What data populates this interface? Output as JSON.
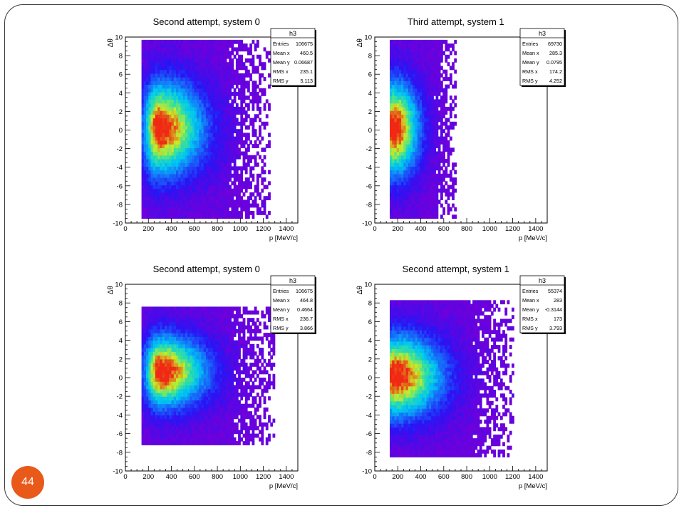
{
  "slide": {
    "page_number": "44"
  },
  "chart_data": [
    {
      "type": "heatmap",
      "title": "Second attempt, system 0",
      "xlabel": "p [MeV/c]",
      "ylabel": "Δθ",
      "xlim": [
        0,
        1500
      ],
      "ylim": [
        -10,
        10
      ],
      "xticks": [
        0,
        200,
        400,
        600,
        800,
        1000,
        1200,
        1400
      ],
      "yticks": [
        -10,
        -8,
        -6,
        -4,
        -2,
        0,
        2,
        4,
        6,
        8,
        10
      ],
      "peak": {
        "x": 280,
        "y": 0
      },
      "spread": {
        "x_range": [
          140,
          1250
        ],
        "y_range": [
          -9.5,
          9.5
        ]
      },
      "stats": {
        "name": "h3",
        "rows": [
          {
            "label": "Entries",
            "value": "106675"
          },
          {
            "label": "Mean x",
            "value": "460.5"
          },
          {
            "label": "Mean y",
            "value": "0.06687"
          },
          {
            "label": "RMS x",
            "value": "235.1"
          },
          {
            "label": "RMS y",
            "value": "5.113"
          }
        ]
      }
    },
    {
      "type": "heatmap",
      "title": "Third attempt, system 1",
      "xlabel": "p [MeV/c]",
      "ylabel": "Δθ",
      "xlim": [
        0,
        1500
      ],
      "ylim": [
        -10,
        10
      ],
      "xticks": [
        0,
        200,
        400,
        600,
        800,
        1000,
        1200,
        1400
      ],
      "yticks": [
        -10,
        -8,
        -6,
        -4,
        -2,
        0,
        2,
        4,
        6,
        8,
        10
      ],
      "peak": {
        "x": 160,
        "y": 0
      },
      "spread": {
        "x_range": [
          130,
          700
        ],
        "y_range": [
          -9.5,
          9.5
        ]
      },
      "stats": {
        "name": "h3",
        "rows": [
          {
            "label": "Entries",
            "value": "69730"
          },
          {
            "label": "Mean x",
            "value": "285.3"
          },
          {
            "label": "Mean y",
            "value": "0.0795"
          },
          {
            "label": "RMS x",
            "value": "174.2"
          },
          {
            "label": "RMS y",
            "value": "4.252"
          }
        ]
      }
    },
    {
      "type": "heatmap",
      "title": "Second attempt, system 0",
      "xlabel": "p [MeV/c]",
      "ylabel": "Δθ",
      "xlim": [
        0,
        1500
      ],
      "ylim": [
        -10,
        10
      ],
      "xticks": [
        0,
        200,
        400,
        600,
        800,
        1000,
        1200,
        1400
      ],
      "yticks": [
        -10,
        -8,
        -6,
        -4,
        -2,
        0,
        2,
        4,
        6,
        8,
        10
      ],
      "peak": {
        "x": 290,
        "y": 0.5
      },
      "spread": {
        "x_range": [
          140,
          1300
        ],
        "y_range": [
          -7.2,
          7.3
        ]
      },
      "stats": {
        "name": "h3",
        "rows": [
          {
            "label": "Entries",
            "value": "106675"
          },
          {
            "label": "Mean x",
            "value": "464.8"
          },
          {
            "label": "Mean y",
            "value": "0.4664"
          },
          {
            "label": "RMS x",
            "value": "236.7"
          },
          {
            "label": "RMS y",
            "value": "3.866"
          }
        ]
      }
    },
    {
      "type": "heatmap",
      "title": "Second attempt, system 1",
      "xlabel": "p [MeV/c]",
      "ylabel": "Δθ",
      "xlim": [
        0,
        1500
      ],
      "ylim": [
        -10,
        10
      ],
      "xticks": [
        0,
        200,
        400,
        600,
        800,
        1000,
        1200,
        1400
      ],
      "yticks": [
        -10,
        -8,
        -6,
        -4,
        -2,
        0,
        2,
        4,
        6,
        8,
        10
      ],
      "peak": {
        "x": 160,
        "y": 0
      },
      "spread": {
        "x_range": [
          130,
          1200
        ],
        "y_range": [
          -8.5,
          8
        ]
      },
      "stats": {
        "name": "h3",
        "rows": [
          {
            "label": "Entries",
            "value": "55374"
          },
          {
            "label": "Mean x",
            "value": "283"
          },
          {
            "label": "Mean y",
            "value": "-0.3144"
          },
          {
            "label": "RMS x",
            "value": "173"
          },
          {
            "label": "RMS y",
            "value": "3.793"
          }
        ]
      }
    }
  ]
}
